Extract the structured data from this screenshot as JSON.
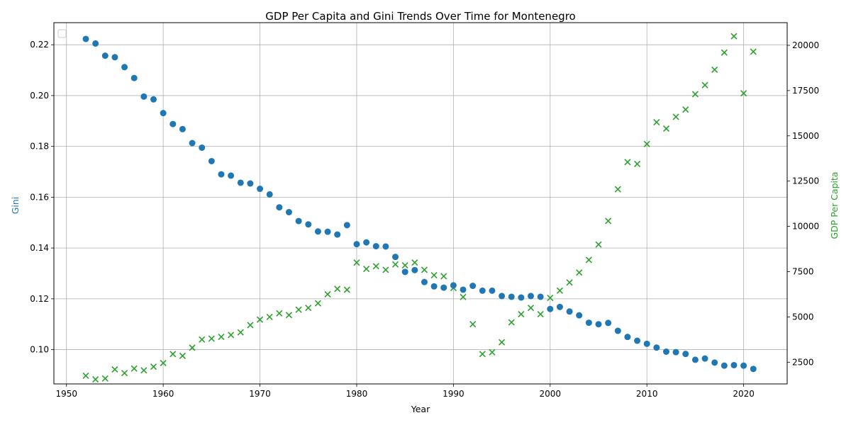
{
  "chart_data": {
    "type": "scatter",
    "title": "GDP Per Capita and Gini Trends Over Time for Montenegro",
    "xlabel": "Year",
    "ylabel_left": "Gini",
    "ylabel_right": "GDP Per Capita",
    "xlim": [
      1948.7,
      2024.5
    ],
    "ylim_left": [
      0.0865,
      0.2287
    ],
    "ylim_right": [
      1300,
      21250
    ],
    "xticks": [
      1950,
      1960,
      1970,
      1980,
      1990,
      2000,
      2010,
      2020
    ],
    "yticks_left": [
      0.1,
      0.12,
      0.14,
      0.16,
      0.18,
      0.2,
      0.22
    ],
    "yticks_left_labels": [
      "0.10",
      "0.12",
      "0.14",
      "0.16",
      "0.18",
      "0.20",
      "0.22"
    ],
    "yticks_right": [
      2500,
      5000,
      7500,
      10000,
      12500,
      15000,
      17500,
      20000
    ],
    "grid": true,
    "legend": "top-left (empty)",
    "colors": {
      "gini": "#1f77b4",
      "gdp": "#2ca02c"
    },
    "series": [
      {
        "axis": "left",
        "marker": "circle",
        "x": [
          1952,
          1953,
          1954,
          1955,
          1956,
          1957,
          1958,
          1959,
          1960,
          1961,
          1962,
          1963,
          1964,
          1965,
          1966,
          1967,
          1968,
          1969,
          1970,
          1971,
          1972,
          1973,
          1974,
          1975,
          1976,
          1977,
          1978,
          1979,
          1980,
          1981,
          1982,
          1983,
          1984,
          1985,
          1986,
          1987,
          1988,
          1989,
          1990,
          1991,
          1992,
          1993,
          1994,
          1995,
          1996,
          1997,
          1998,
          1999,
          2000,
          2001,
          2002,
          2003,
          2004,
          2005,
          2006,
          2007,
          2008,
          2009,
          2010,
          2011,
          2012,
          2013,
          2014,
          2015,
          2016,
          2017,
          2018,
          2019,
          2020,
          2021
        ],
        "values": [
          0.2223,
          0.2205,
          0.2157,
          0.2151,
          0.2112,
          0.2069,
          0.1996,
          0.1985,
          0.1931,
          0.1888,
          0.1868,
          0.1813,
          0.1795,
          0.1742,
          0.169,
          0.1685,
          0.1657,
          0.1654,
          0.1633,
          0.1611,
          0.156,
          0.1541,
          0.1506,
          0.1493,
          0.1465,
          0.1464,
          0.1453,
          0.149,
          0.1415,
          0.1422,
          0.1407,
          0.1406,
          0.1365,
          0.1306,
          0.1313,
          0.1266,
          0.1249,
          0.1244,
          0.1253,
          0.1236,
          0.1251,
          0.1232,
          0.1232,
          0.1211,
          0.1208,
          0.1205,
          0.1211,
          0.1208,
          0.116,
          0.1168,
          0.115,
          0.1135,
          0.1106,
          0.11,
          0.1105,
          0.1074,
          0.105,
          0.1035,
          0.1023,
          0.1008,
          0.0992,
          0.099,
          0.0983,
          0.096,
          0.0965,
          0.0949,
          0.0937,
          0.0939,
          0.0937,
          0.0924
        ]
      },
      {
        "axis": "right",
        "marker": "x",
        "x": [
          1952,
          1953,
          1954,
          1955,
          1956,
          1957,
          1958,
          1959,
          1960,
          1961,
          1962,
          1963,
          1964,
          1965,
          1966,
          1967,
          1968,
          1969,
          1970,
          1971,
          1972,
          1973,
          1974,
          1975,
          1976,
          1977,
          1978,
          1979,
          1980,
          1981,
          1982,
          1983,
          1984,
          1985,
          1986,
          1987,
          1988,
          1989,
          1990,
          1991,
          1992,
          1993,
          1994,
          1995,
          1996,
          1997,
          1998,
          1999,
          2000,
          2001,
          2002,
          2003,
          2004,
          2005,
          2006,
          2007,
          2008,
          2009,
          2010,
          2011,
          2012,
          2013,
          2014,
          2015,
          2016,
          2017,
          2018,
          2019,
          2020,
          2021
        ],
        "values": [
          1750,
          1550,
          1600,
          2100,
          1900,
          2150,
          2050,
          2250,
          2450,
          2950,
          2850,
          3300,
          3750,
          3800,
          3900,
          4000,
          4150,
          4550,
          4850,
          5000,
          5200,
          5100,
          5400,
          5500,
          5750,
          6250,
          6550,
          6500,
          8000,
          7650,
          7800,
          7600,
          7900,
          7850,
          8000,
          7600,
          7300,
          7250,
          6600,
          6100,
          4600,
          2950,
          3050,
          3600,
          4700,
          5150,
          5500,
          5150,
          6050,
          6450,
          6900,
          7450,
          8150,
          9000,
          10300,
          12050,
          13550,
          13450,
          14550,
          15750,
          15400,
          16050,
          16450,
          17300,
          17800,
          18650,
          19600,
          20500,
          17350,
          19650
        ]
      }
    ]
  }
}
